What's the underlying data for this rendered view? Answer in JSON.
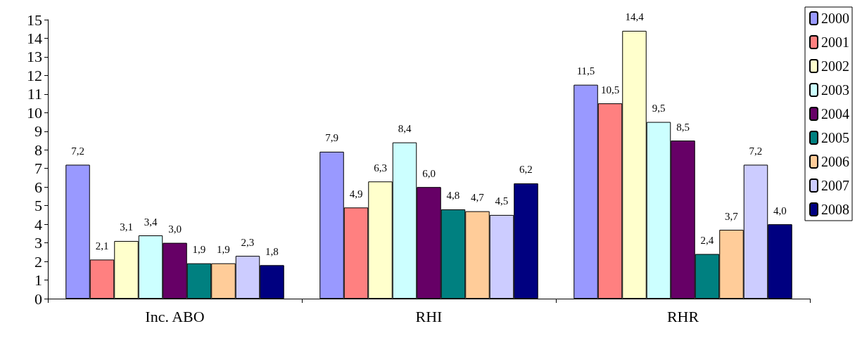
{
  "chart_data": {
    "type": "bar",
    "categories": [
      "Inc. ABO",
      "RHI",
      "RHR"
    ],
    "series": [
      {
        "name": "2000",
        "color": "#9999ff",
        "values": [
          7.2,
          7.9,
          11.5
        ],
        "value_labels": [
          "7,2",
          "7,9",
          "11,5"
        ]
      },
      {
        "name": "2001",
        "color": "#ff8080",
        "values": [
          2.1,
          4.9,
          10.5
        ],
        "value_labels": [
          "2,1",
          "4,9",
          "10,5"
        ]
      },
      {
        "name": "2002",
        "color": "#ffffcc",
        "values": [
          3.1,
          6.3,
          14.4
        ],
        "value_labels": [
          "3,1",
          "6,3",
          "14,4"
        ]
      },
      {
        "name": "2003",
        "color": "#ccffff",
        "values": [
          3.4,
          8.4,
          9.5
        ],
        "value_labels": [
          "3,4",
          "8,4",
          "9,5"
        ]
      },
      {
        "name": "2004",
        "color": "#660066",
        "values": [
          3.0,
          6.0,
          8.5
        ],
        "value_labels": [
          "3,0",
          "6,0",
          "8,5"
        ]
      },
      {
        "name": "2005",
        "color": "#008080",
        "values": [
          1.9,
          4.8,
          2.4
        ],
        "value_labels": [
          "1,9",
          "4,8",
          "2,4"
        ]
      },
      {
        "name": "2006",
        "color": "#ffcc99",
        "values": [
          1.9,
          4.7,
          3.7
        ],
        "value_labels": [
          "1,9",
          "4,7",
          "3,7"
        ]
      },
      {
        "name": "2007",
        "color": "#ccccff",
        "values": [
          2.3,
          4.5,
          7.2
        ],
        "value_labels": [
          "2,3",
          "4,5",
          "7,2"
        ]
      },
      {
        "name": "2008",
        "color": "#000080",
        "values": [
          1.8,
          6.2,
          4.0
        ],
        "value_labels": [
          "1,8",
          "6,2",
          "4,0"
        ]
      }
    ],
    "ylim": [
      0,
      15
    ],
    "yticks": [
      0,
      1,
      2,
      3,
      4,
      5,
      6,
      7,
      8,
      9,
      10,
      11,
      12,
      13,
      14,
      15
    ],
    "grid": false,
    "legend": "right"
  }
}
